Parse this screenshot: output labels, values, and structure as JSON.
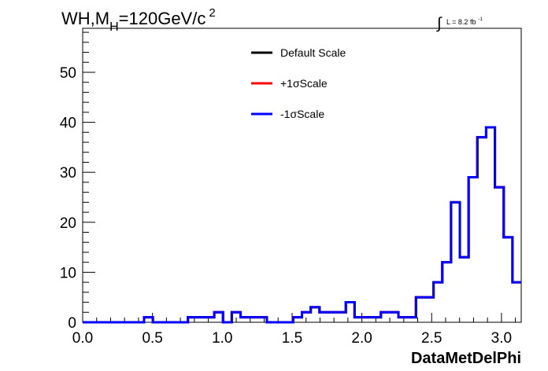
{
  "chart_data": {
    "type": "line",
    "title_main": "WH,M",
    "title_sub": "H",
    "title_rest": "=120GeV/c",
    "title_sup": "2",
    "lumi_integral": "∫",
    "lumi_text": "L = 8.2 fb",
    "lumi_sup": "-1",
    "xlabel": "DataMetDelPhi",
    "xlim": [
      0,
      3.1416
    ],
    "ylim": [
      0,
      58.8
    ],
    "x_ticks": [
      0.0,
      0.5,
      1.0,
      1.5,
      2.0,
      2.5,
      3.0
    ],
    "x_tick_labels": [
      "0.0",
      "0.5",
      "1.0",
      "1.5",
      "2.0",
      "2.5",
      "3.0"
    ],
    "y_ticks": [
      0,
      10,
      20,
      30,
      40,
      50
    ],
    "y_tick_labels": [
      "0",
      "10",
      "20",
      "30",
      "40",
      "50"
    ],
    "legend_position": "top-center",
    "bin_edges": [
      0,
      0.0628,
      0.1257,
      0.1885,
      0.2513,
      0.3142,
      0.377,
      0.4398,
      0.5027,
      0.5655,
      0.6283,
      0.6912,
      0.754,
      0.8168,
      0.8796,
      0.9425,
      1.0053,
      1.0681,
      1.131,
      1.1938,
      1.2566,
      1.3195,
      1.3823,
      1.4451,
      1.508,
      1.5708,
      1.6336,
      1.6965,
      1.7593,
      1.8221,
      1.885,
      1.9478,
      2.0106,
      2.0735,
      2.1363,
      2.1991,
      2.2619,
      2.3248,
      2.3876,
      2.4504,
      2.5133,
      2.5761,
      2.6389,
      2.7018,
      2.7646,
      2.8274,
      2.8903,
      2.9531,
      3.0159,
      3.0788,
      3.1416
    ],
    "series": [
      {
        "name": "Default Scale",
        "color": "#000000",
        "values": [
          0,
          0,
          0,
          0,
          0,
          0,
          0,
          1,
          0,
          0,
          0,
          0,
          1,
          1,
          1,
          2,
          0,
          2,
          1,
          1,
          1,
          0,
          0,
          0,
          1,
          2,
          3,
          2,
          2,
          2,
          4,
          1,
          1,
          1,
          2,
          2,
          1,
          1,
          5,
          5,
          8,
          12,
          24,
          13,
          29,
          37,
          39,
          27,
          17,
          8
        ]
      },
      {
        "name": "+1σScale",
        "color": "#ff0000",
        "values": [
          0,
          0,
          0,
          0,
          0,
          0,
          0,
          1,
          0,
          0,
          0,
          0,
          1,
          1,
          1,
          2,
          0,
          2,
          1,
          1,
          1,
          0,
          0,
          0,
          1,
          2,
          3,
          2,
          2,
          2,
          4,
          1,
          1,
          1,
          2,
          2,
          1,
          1,
          5,
          5,
          8,
          12,
          24,
          13,
          29,
          37,
          39,
          27,
          17,
          8
        ]
      },
      {
        "name": "-1σScale",
        "color": "#0000ff",
        "values": [
          0,
          0,
          0,
          0,
          0,
          0,
          0,
          1,
          0,
          0,
          0,
          0,
          1,
          1,
          1,
          2,
          0,
          2,
          1,
          1,
          1,
          0,
          0,
          0,
          1,
          2,
          3,
          2,
          2,
          2,
          4,
          1,
          1,
          1,
          2,
          2,
          1,
          1,
          5,
          5,
          8,
          12,
          24,
          13,
          29,
          37,
          39,
          27,
          17,
          8
        ]
      }
    ]
  }
}
